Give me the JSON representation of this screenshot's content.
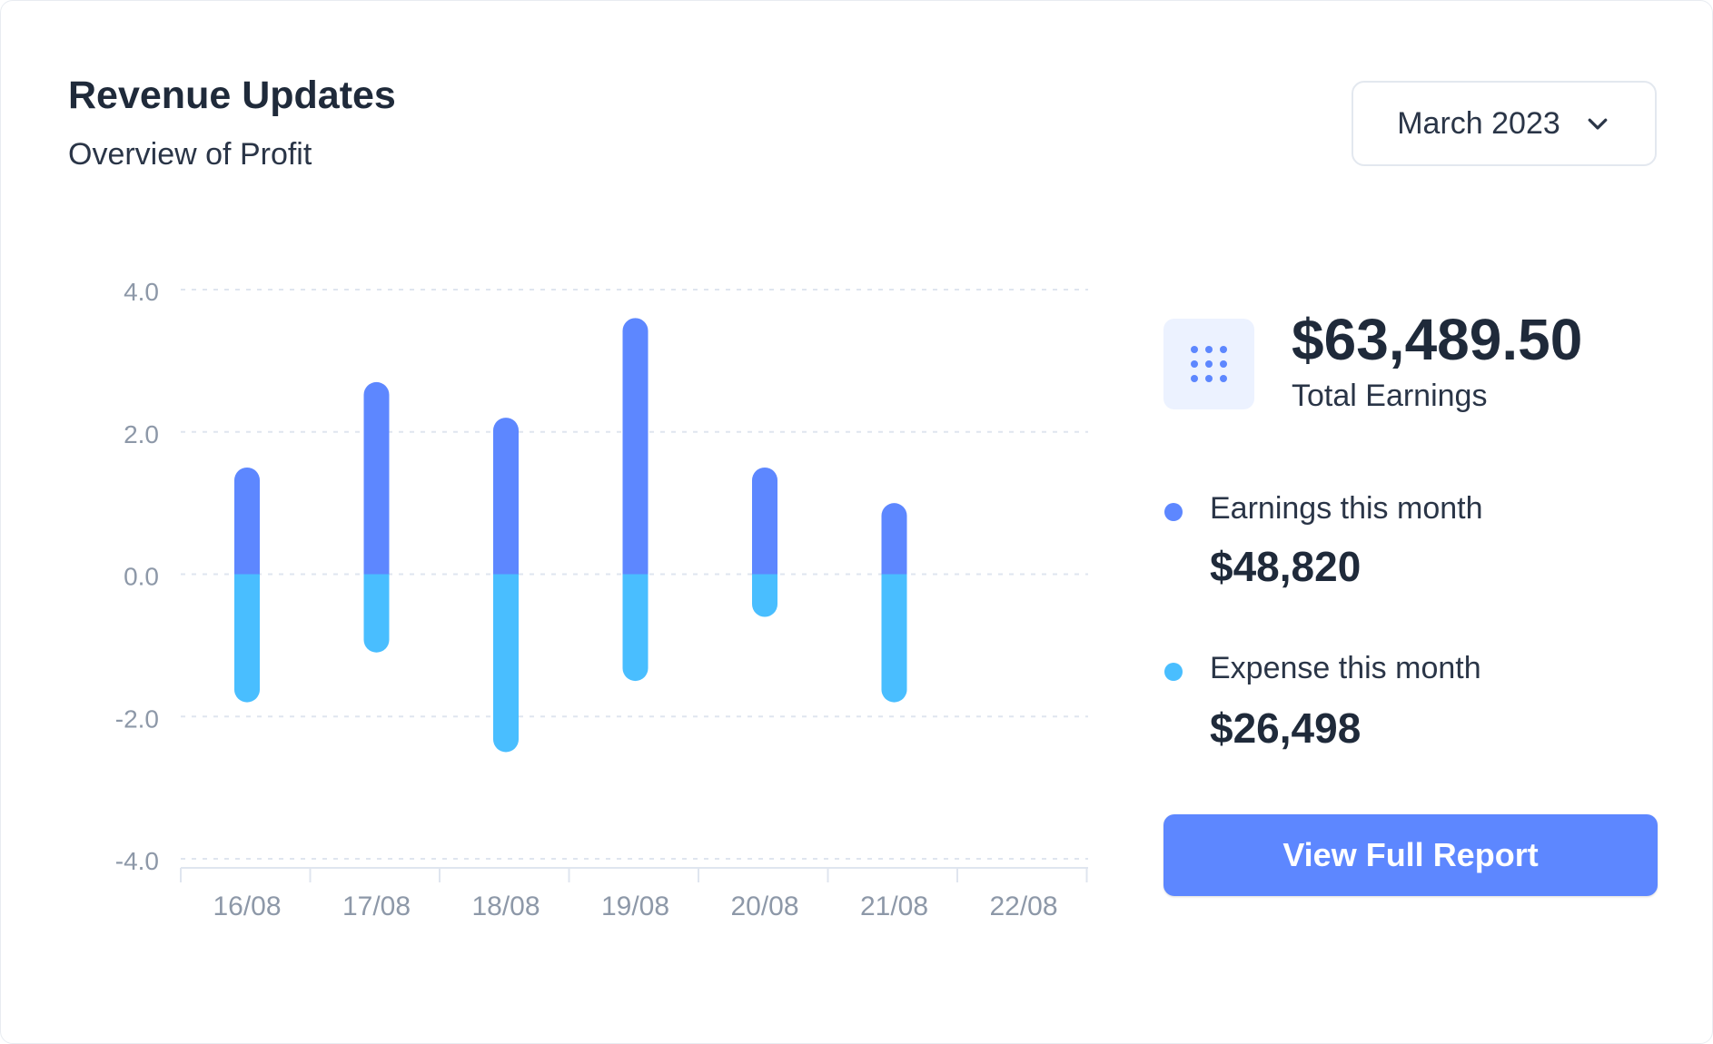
{
  "header": {
    "title": "Revenue Updates",
    "subtitle": "Overview of Profit"
  },
  "month_select": {
    "value": "March 2023",
    "icon": "chevron-down-icon"
  },
  "summary": {
    "icon": "grid-dots-icon",
    "total_value": "$63,489.50",
    "total_label": "Total Earnings",
    "earnings": {
      "label": "Earnings this month",
      "value": "$48,820",
      "color": "#5d87ff"
    },
    "expense": {
      "label": "Expense this month",
      "value": "$26,498",
      "color": "#49beff"
    }
  },
  "report_button": {
    "label": "View Full Report"
  },
  "chart_data": {
    "type": "bar",
    "stacked": true,
    "categories": [
      "16/08",
      "17/08",
      "18/08",
      "19/08",
      "20/08",
      "21/08",
      "22/08"
    ],
    "series": [
      {
        "name": "Earnings this month",
        "color": "#5d87ff",
        "values": [
          1.5,
          2.7,
          2.2,
          3.6,
          1.5,
          1.0,
          0
        ]
      },
      {
        "name": "Expense this month",
        "color": "#49beff",
        "values": [
          -1.8,
          -1.1,
          -2.5,
          -1.5,
          -0.6,
          -1.8,
          0
        ]
      }
    ],
    "yticks": [
      "4.0",
      "2.0",
      "0.0",
      "-2.0",
      "-4.0"
    ],
    "ylim": [
      -4,
      4
    ],
    "grid": true,
    "legend": "right",
    "title": "",
    "xlabel": "",
    "ylabel": ""
  }
}
